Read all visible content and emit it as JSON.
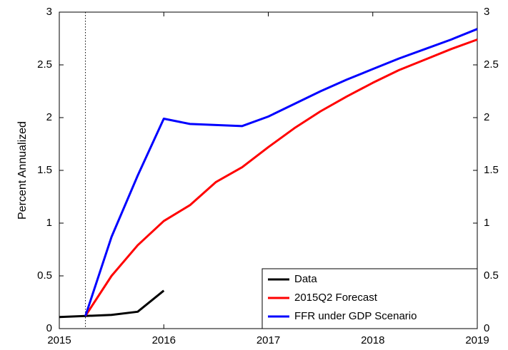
{
  "chart_data": {
    "type": "line",
    "y_label": "Percent Annualized",
    "x": [
      2015,
      2015.25,
      2015.5,
      2015.75,
      2016,
      2016.25,
      2016.5,
      2016.75,
      2017,
      2017.25,
      2017.5,
      2017.75,
      2018,
      2018.25,
      2018.5,
      2018.75,
      2019
    ],
    "series": [
      {
        "name": "Data",
        "color": "#000000",
        "values": [
          0.11,
          0.12,
          0.13,
          0.16,
          0.36,
          null,
          null,
          null,
          null,
          null,
          null,
          null,
          null,
          null,
          null,
          null,
          null
        ]
      },
      {
        "name": "2015Q2 Forecast",
        "color": "#ff0000",
        "values": [
          null,
          0.12,
          0.5,
          0.79,
          1.02,
          1.17,
          1.39,
          1.53,
          1.72,
          1.9,
          2.06,
          2.2,
          2.33,
          2.45,
          2.55,
          2.65,
          2.74
        ]
      },
      {
        "name": "FFR under GDP Scenario",
        "color": "#0000ff",
        "values": [
          null,
          0.12,
          0.87,
          1.45,
          1.99,
          1.94,
          1.93,
          1.92,
          2.01,
          2.13,
          2.25,
          2.36,
          2.46,
          2.56,
          2.65,
          2.74,
          2.84
        ]
      }
    ],
    "xlim": [
      2015,
      2019
    ],
    "xticks": [
      2015,
      2016,
      2017,
      2018,
      2019
    ],
    "ylim": [
      0,
      3
    ],
    "yticks": [
      0,
      0.5,
      1,
      1.5,
      2,
      2.5,
      3
    ],
    "y2lim": [
      0,
      3
    ],
    "y2ticks": [
      0,
      0.5,
      1,
      1.5,
      2,
      2.5,
      3
    ],
    "reference_line_x": 2015.25,
    "legend": "lower right",
    "grid": false
  }
}
